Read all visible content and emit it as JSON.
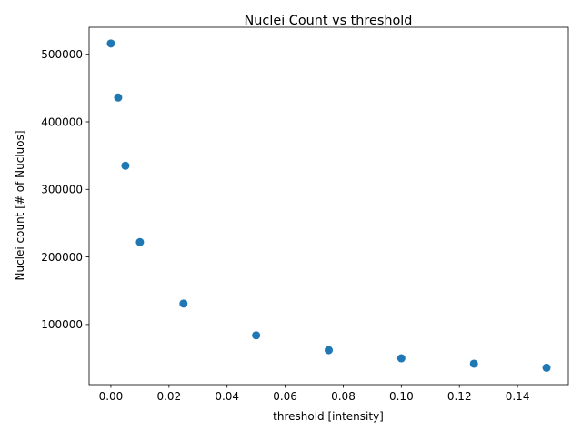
{
  "chart_data": {
    "type": "scatter",
    "title": "Nuclei Count vs threshold",
    "xlabel": "threshold [intensity]",
    "ylabel": "Nuclei count [# of Nucluos]",
    "xlim": [
      -0.0075,
      0.1575
    ],
    "ylim": [
      11000,
      540000
    ],
    "xticks": [
      0.0,
      0.02,
      0.04,
      0.06,
      0.08,
      0.1,
      0.12,
      0.14
    ],
    "xtick_labels": [
      "0.00",
      "0.02",
      "0.04",
      "0.06",
      "0.08",
      "0.10",
      "0.12",
      "0.14"
    ],
    "yticks": [
      100000,
      200000,
      300000,
      400000,
      500000
    ],
    "ytick_labels": [
      "100000",
      "200000",
      "300000",
      "400000",
      "500000"
    ],
    "grid": false,
    "marker_color": "#1f77b4",
    "series": [
      {
        "x": [
          0.0,
          0.0025,
          0.005,
          0.01,
          0.025,
          0.05,
          0.075,
          0.1,
          0.125,
          0.15
        ],
        "y": [
          516000,
          436000,
          335000,
          222000,
          131000,
          84000,
          62000,
          50000,
          42000,
          36000
        ]
      }
    ]
  }
}
